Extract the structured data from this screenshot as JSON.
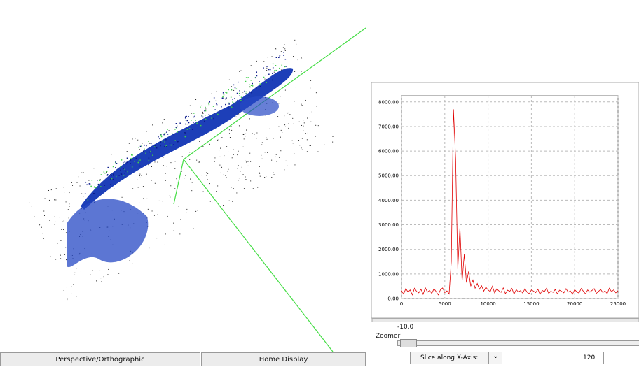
{
  "viewer": {
    "perspective_button": "Perspective/Orthographic",
    "home_button": "Home Display"
  },
  "chart_data": {
    "type": "line",
    "x": [
      0,
      250,
      500,
      750,
      1000,
      1250,
      1500,
      1750,
      2000,
      2250,
      2500,
      2750,
      3000,
      3250,
      3500,
      3750,
      4000,
      4250,
      4500,
      4750,
      5000,
      5250,
      5500,
      5750,
      6000,
      6250,
      6500,
      6750,
      7000,
      7250,
      7500,
      7750,
      8000,
      8250,
      8500,
      8750,
      9000,
      9250,
      9500,
      9750,
      10000,
      10250,
      10500,
      10750,
      11000,
      11250,
      11500,
      11750,
      12000,
      12250,
      12500,
      12750,
      13000,
      13250,
      13500,
      13750,
      14000,
      14250,
      14500,
      14750,
      15000,
      15250,
      15500,
      15750,
      16000,
      16250,
      16500,
      16750,
      17000,
      17250,
      17500,
      17750,
      18000,
      18250,
      18500,
      18750,
      19000,
      19250,
      19500,
      19750,
      20000,
      20250,
      20500,
      20750,
      21000,
      21250,
      21500,
      21750,
      22000,
      22250,
      22500,
      22750,
      23000,
      23250,
      23500,
      23750,
      24000,
      24250,
      24500,
      24750,
      25000
    ],
    "series": [
      {
        "color": "#e00000",
        "values": [
          320,
          180,
          410,
          260,
          350,
          150,
          420,
          290,
          230,
          380,
          170,
          440,
          260,
          330,
          200,
          400,
          280,
          150,
          360,
          430,
          240,
          310,
          190,
          1500,
          7700,
          5700,
          1200,
          2900,
          700,
          1800,
          650,
          1100,
          500,
          750,
          420,
          610,
          380,
          520,
          300,
          460,
          350,
          280,
          500,
          230,
          390,
          310,
          250,
          430,
          200,
          340,
          290,
          410,
          180,
          360,
          270,
          320,
          220,
          400,
          260,
          190,
          350,
          300,
          240,
          380,
          170,
          330,
          280,
          420,
          210,
          300,
          250,
          370,
          190,
          340,
          290,
          230,
          400,
          260,
          310,
          180,
          360,
          270,
          220,
          410,
          300,
          190,
          350,
          260,
          330,
          400,
          210,
          290,
          370,
          240,
          310,
          200,
          420,
          280,
          350,
          230,
          320
        ]
      }
    ],
    "xlim": [
      0,
      25000
    ],
    "xticks": [
      0,
      5000,
      10000,
      15000,
      20000,
      25000
    ],
    "ylim": [
      0,
      8250
    ],
    "yticks": [
      {
        "value": 0,
        "label": "0.00"
      },
      {
        "value": 1000,
        "label": "1000.00"
      },
      {
        "value": 2000,
        "label": "2000.00"
      },
      {
        "value": 3000,
        "label": "3000.00"
      },
      {
        "value": 4000,
        "label": "4000.00"
      },
      {
        "value": 5000,
        "label": "5000.00"
      },
      {
        "value": 6000,
        "label": "6000.00"
      },
      {
        "value": 7000,
        "label": "7000.00"
      },
      {
        "value": 8000,
        "label": "8000.00"
      }
    ],
    "grid": true
  },
  "controls": {
    "zoomer_label": "Zoomer:",
    "zoomer_value": "-10.0",
    "slice_option": "Slice along X-Axis:",
    "slice_index": "120"
  }
}
